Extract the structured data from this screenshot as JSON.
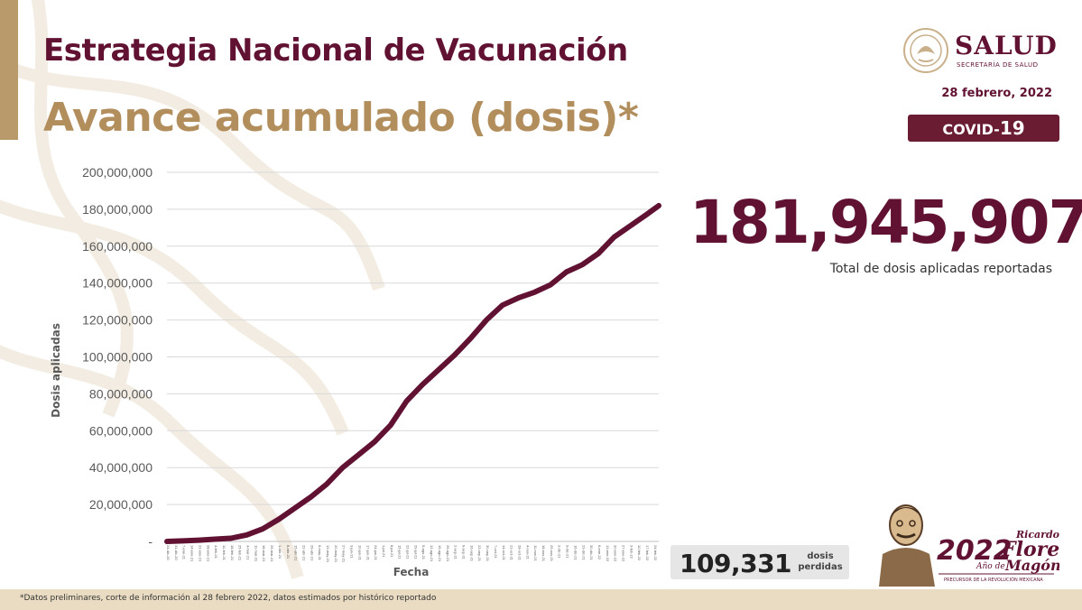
{
  "header": {
    "title": "Estrategia Nacional de Vacunación",
    "subtitle": "Avance acumulado (dosis)*"
  },
  "brand": {
    "name": "SALUD",
    "sub": "SECRETARÍA DE SALUD",
    "date": "28 febrero, 2022",
    "badge_prefix": "COVID-",
    "badge_number": "19",
    "color_primary": "#611232",
    "color_gold": "#b38e5d"
  },
  "kpi": {
    "total_value": "181,945,907",
    "total_caption": "Total de dosis aplicadas reportadas",
    "lost_value": "109,331",
    "lost_label_line1": "dosis",
    "lost_label_line2": "perdidas"
  },
  "badge_2022": {
    "year": "2022",
    "year_caption": "Año de",
    "name_first": "Ricardo",
    "name_mid": "Flores",
    "name_last": "Magón",
    "tagline": "PRECURSOR DE LA REVOLUCIÓN MEXICANA"
  },
  "footnote": "*Datos preliminares, corte de información al 28 febrero 2022, datos estimados por histórico reportado",
  "chart_data": {
    "type": "line",
    "xlabel": "Fecha",
    "ylabel": "Dosis aplicadas",
    "ylim": [
      0,
      200000000
    ],
    "yticks": [
      0,
      20000000,
      40000000,
      60000000,
      80000000,
      100000000,
      120000000,
      140000000,
      160000000,
      180000000,
      200000000
    ],
    "ytick_labels": [
      "-",
      "20,000,000",
      "40,000,000",
      "60,000,000",
      "80,000,000",
      "100,000,000",
      "120,000,000",
      "140,000,000",
      "160,000,000",
      "180,000,000",
      "200,000,000"
    ],
    "grid": true,
    "line_color": "#611232",
    "x": [
      "2020-12-24",
      "2021-01-07",
      "2021-01-21",
      "2021-02-04",
      "2021-02-18",
      "2021-03-04",
      "2021-03-18",
      "2021-04-01",
      "2021-04-15",
      "2021-04-29",
      "2021-05-13",
      "2021-05-27",
      "2021-06-10",
      "2021-06-24",
      "2021-07-08",
      "2021-07-22",
      "2021-08-05",
      "2021-08-19",
      "2021-09-02",
      "2021-09-16",
      "2021-09-30",
      "2021-10-14",
      "2021-10-28",
      "2021-11-11",
      "2021-11-25",
      "2021-12-09",
      "2021-12-23",
      "2022-01-06",
      "2022-01-20",
      "2022-02-03",
      "2022-02-17",
      "2022-02-28"
    ],
    "y": [
      0,
      300000,
      700000,
      1200000,
      1700000,
      3500000,
      6800000,
      12000000,
      18000000,
      24000000,
      31000000,
      40000000,
      47000000,
      54000000,
      63000000,
      76000000,
      85000000,
      93000000,
      101000000,
      110000000,
      120000000,
      128000000,
      132000000,
      135000000,
      139000000,
      146000000,
      150000000,
      156000000,
      165000000,
      171000000,
      177000000,
      181945907
    ]
  }
}
